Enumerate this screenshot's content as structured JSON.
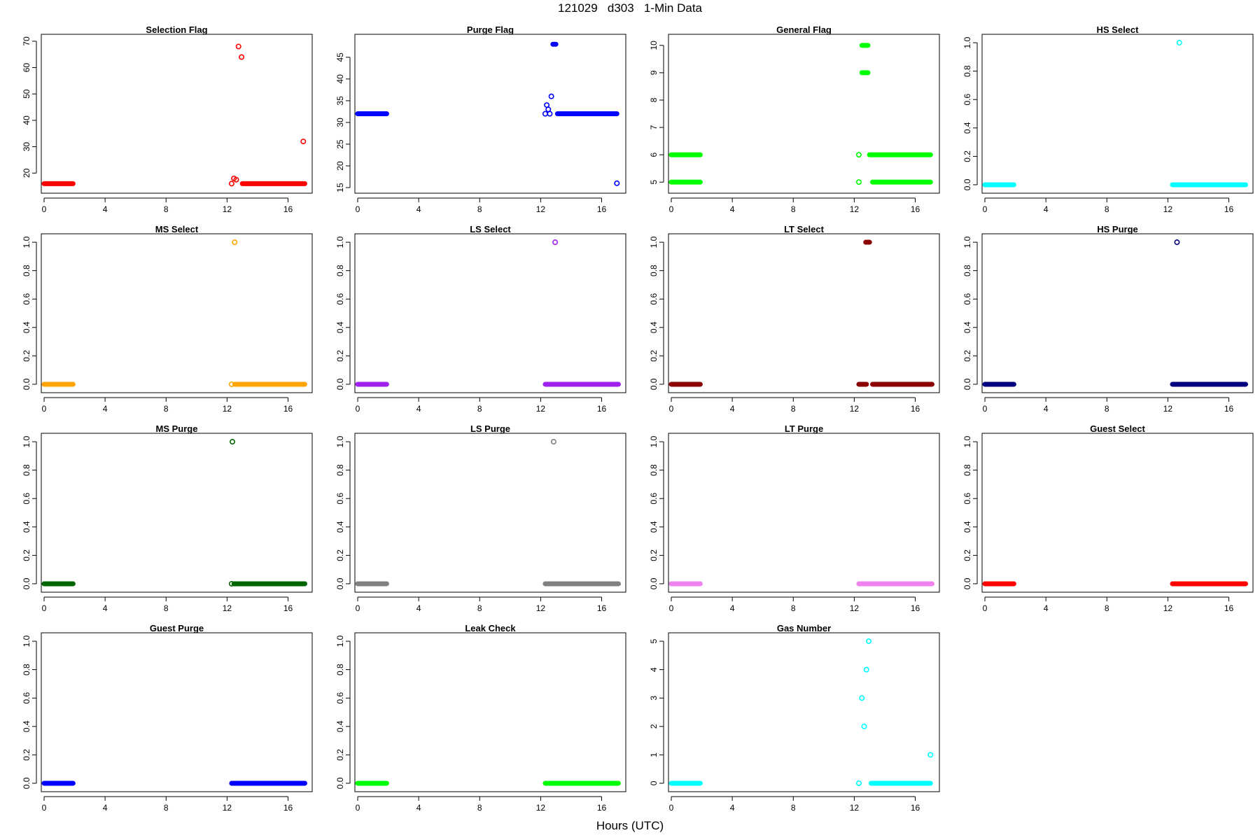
{
  "page": {
    "title": "121029   d303   1-Min Data",
    "xlabel": "Hours (UTC)"
  },
  "chart_data": [
    {
      "type": "scatter",
      "title": "Selection Flag",
      "color": "#ff0000",
      "xlim": [
        0,
        17.4
      ],
      "ylim": [
        14.5,
        70.5
      ],
      "xticks": [
        "0",
        "4",
        "8",
        "12",
        "16"
      ],
      "yticks": [
        "20",
        "30",
        "40",
        "50",
        "60",
        "70"
      ],
      "segments": [
        {
          "x": [
            0.0,
            1.9
          ],
          "y": 16
        },
        {
          "x": [
            13.0,
            17.1
          ],
          "y": 16
        }
      ],
      "points": [
        [
          12.3,
          16
        ],
        [
          12.45,
          18
        ],
        [
          12.6,
          17.5
        ],
        [
          12.75,
          68
        ],
        [
          12.95,
          64
        ],
        [
          17.0,
          32
        ]
      ]
    },
    {
      "type": "scatter",
      "title": "Purge Flag",
      "color": "#0000ff",
      "xlim": [
        0,
        17.4
      ],
      "ylim": [
        15,
        49
      ],
      "xticks": [
        "0",
        "4",
        "8",
        "12",
        "16"
      ],
      "yticks": [
        "15",
        "20",
        "25",
        "30",
        "35",
        "40",
        "45"
      ],
      "segments": [
        {
          "x": [
            0.0,
            1.9
          ],
          "y": 32
        },
        {
          "x": [
            13.1,
            17.0
          ],
          "y": 32
        },
        {
          "x": [
            12.8,
            13.0
          ],
          "y": 48
        }
      ],
      "points": [
        [
          12.3,
          32
        ],
        [
          12.4,
          34
        ],
        [
          12.5,
          33
        ],
        [
          12.6,
          32
        ],
        [
          12.7,
          36
        ],
        [
          17.0,
          16
        ]
      ]
    },
    {
      "type": "scatter",
      "title": "General Flag",
      "color": "#00ff00",
      "xlim": [
        0,
        17.4
      ],
      "ylim": [
        4.8,
        10.2
      ],
      "xticks": [
        "0",
        "4",
        "8",
        "12",
        "16"
      ],
      "yticks": [
        "5",
        "6",
        "7",
        "8",
        "9",
        "10"
      ],
      "segments": [
        {
          "x": [
            0.0,
            1.9
          ],
          "y": 5
        },
        {
          "x": [
            0.0,
            1.9
          ],
          "y": 6
        },
        {
          "x": [
            13.2,
            17.0
          ],
          "y": 5
        },
        {
          "x": [
            13.0,
            17.0
          ],
          "y": 6
        },
        {
          "x": [
            12.5,
            12.9
          ],
          "y": 9
        },
        {
          "x": [
            12.5,
            12.9
          ],
          "y": 10
        }
      ],
      "points": [
        [
          12.3,
          5
        ],
        [
          12.3,
          6
        ]
      ]
    },
    {
      "type": "scatter",
      "title": "HS Select",
      "color": "#00ffff",
      "xlim": [
        0,
        17.4
      ],
      "ylim": [
        -0.02,
        1.02
      ],
      "xticks": [
        "0",
        "4",
        "8",
        "12",
        "16"
      ],
      "yticks": [
        "0.0",
        "0.2",
        "0.4",
        "0.6",
        "0.8",
        "1.0"
      ],
      "segments": [
        {
          "x": [
            0.0,
            1.9
          ],
          "y": 0
        },
        {
          "x": [
            12.3,
            17.1
          ],
          "y": 0
        }
      ],
      "points": [
        [
          12.75,
          1
        ]
      ]
    },
    {
      "type": "scatter",
      "title": "MS Select",
      "color": "#ffa500",
      "xlim": [
        0,
        17.4
      ],
      "ylim": [
        -0.02,
        1.02
      ],
      "xticks": [
        "0",
        "4",
        "8",
        "12",
        "16"
      ],
      "yticks": [
        "0.0",
        "0.2",
        "0.4",
        "0.6",
        "0.8",
        "1.0"
      ],
      "segments": [
        {
          "x": [
            0.0,
            1.9
          ],
          "y": 0
        },
        {
          "x": [
            12.5,
            17.1
          ],
          "y": 0
        }
      ],
      "points": [
        [
          12.3,
          0
        ],
        [
          12.5,
          1
        ]
      ]
    },
    {
      "type": "scatter",
      "title": "LS Select",
      "color": "#a020f0",
      "xlim": [
        0,
        17.4
      ],
      "ylim": [
        -0.02,
        1.02
      ],
      "xticks": [
        "0",
        "4",
        "8",
        "12",
        "16"
      ],
      "yticks": [
        "0.0",
        "0.2",
        "0.4",
        "0.6",
        "0.8",
        "1.0"
      ],
      "segments": [
        {
          "x": [
            0.0,
            1.9
          ],
          "y": 0
        },
        {
          "x": [
            12.3,
            17.1
          ],
          "y": 0
        }
      ],
      "points": [
        [
          12.95,
          1
        ]
      ]
    },
    {
      "type": "scatter",
      "title": "LT Select",
      "color": "#8b0000",
      "xlim": [
        0,
        17.4
      ],
      "ylim": [
        -0.02,
        1.02
      ],
      "xticks": [
        "0",
        "4",
        "8",
        "12",
        "16"
      ],
      "yticks": [
        "0.0",
        "0.2",
        "0.4",
        "0.6",
        "0.8",
        "1.0"
      ],
      "segments": [
        {
          "x": [
            0.0,
            1.9
          ],
          "y": 0
        },
        {
          "x": [
            12.3,
            12.8
          ],
          "y": 0
        },
        {
          "x": [
            13.2,
            17.1
          ],
          "y": 0
        },
        {
          "x": [
            12.75,
            13.0
          ],
          "y": 1
        }
      ],
      "points": []
    },
    {
      "type": "scatter",
      "title": "HS Purge",
      "color": "#000080",
      "xlim": [
        0,
        17.4
      ],
      "ylim": [
        -0.02,
        1.02
      ],
      "xticks": [
        "0",
        "4",
        "8",
        "12",
        "16"
      ],
      "yticks": [
        "0.0",
        "0.2",
        "0.4",
        "0.6",
        "0.8",
        "1.0"
      ],
      "segments": [
        {
          "x": [
            0.0,
            1.9
          ],
          "y": 0
        },
        {
          "x": [
            12.3,
            17.1
          ],
          "y": 0
        }
      ],
      "points": [
        [
          12.6,
          1
        ]
      ]
    },
    {
      "type": "scatter",
      "title": "MS Purge",
      "color": "#006400",
      "xlim": [
        0,
        17.4
      ],
      "ylim": [
        -0.02,
        1.02
      ],
      "xticks": [
        "0",
        "4",
        "8",
        "12",
        "16"
      ],
      "yticks": [
        "0.0",
        "0.2",
        "0.4",
        "0.6",
        "0.8",
        "1.0"
      ],
      "segments": [
        {
          "x": [
            0.0,
            1.9
          ],
          "y": 0
        },
        {
          "x": [
            12.45,
            17.1
          ],
          "y": 0
        }
      ],
      "points": [
        [
          12.3,
          0
        ],
        [
          12.35,
          1
        ]
      ]
    },
    {
      "type": "scatter",
      "title": "LS Purge",
      "color": "#808080",
      "xlim": [
        0,
        17.4
      ],
      "ylim": [
        -0.02,
        1.02
      ],
      "xticks": [
        "0",
        "4",
        "8",
        "12",
        "16"
      ],
      "yticks": [
        "0.0",
        "0.2",
        "0.4",
        "0.6",
        "0.8",
        "1.0"
      ],
      "segments": [
        {
          "x": [
            0.0,
            1.9
          ],
          "y": 0
        },
        {
          "x": [
            12.3,
            17.1
          ],
          "y": 0
        }
      ],
      "points": [
        [
          12.85,
          1
        ]
      ]
    },
    {
      "type": "scatter",
      "title": "LT Purge",
      "color": "#ee82ee",
      "xlim": [
        0,
        17.4
      ],
      "ylim": [
        -0.02,
        1.02
      ],
      "xticks": [
        "0",
        "4",
        "8",
        "12",
        "16"
      ],
      "yticks": [
        "0.0",
        "0.2",
        "0.4",
        "0.6",
        "0.8",
        "1.0"
      ],
      "segments": [
        {
          "x": [
            0.0,
            1.9
          ],
          "y": 0
        },
        {
          "x": [
            12.3,
            17.1
          ],
          "y": 0
        }
      ],
      "points": []
    },
    {
      "type": "scatter",
      "title": "Guest Select",
      "color": "#ff0000",
      "xlim": [
        0,
        17.4
      ],
      "ylim": [
        -0.02,
        1.02
      ],
      "xticks": [
        "0",
        "4",
        "8",
        "12",
        "16"
      ],
      "yticks": [
        "0.0",
        "0.2",
        "0.4",
        "0.6",
        "0.8",
        "1.0"
      ],
      "segments": [
        {
          "x": [
            0.0,
            1.9
          ],
          "y": 0
        },
        {
          "x": [
            12.3,
            17.1
          ],
          "y": 0
        }
      ],
      "points": []
    },
    {
      "type": "scatter",
      "title": "Guest Purge",
      "color": "#0000ff",
      "xlim": [
        0,
        17.4
      ],
      "ylim": [
        -0.02,
        1.02
      ],
      "xticks": [
        "0",
        "4",
        "8",
        "12",
        "16"
      ],
      "yticks": [
        "0.0",
        "0.2",
        "0.4",
        "0.6",
        "0.8",
        "1.0"
      ],
      "segments": [
        {
          "x": [
            0.0,
            1.9
          ],
          "y": 0
        },
        {
          "x": [
            12.3,
            17.1
          ],
          "y": 0
        }
      ],
      "points": []
    },
    {
      "type": "scatter",
      "title": "Leak Check",
      "color": "#00ff00",
      "xlim": [
        0,
        17.4
      ],
      "ylim": [
        -0.02,
        1.02
      ],
      "xticks": [
        "0",
        "4",
        "8",
        "12",
        "16"
      ],
      "yticks": [
        "0.0",
        "0.2",
        "0.4",
        "0.6",
        "0.8",
        "1.0"
      ],
      "segments": [
        {
          "x": [
            0.0,
            1.9
          ],
          "y": 0
        },
        {
          "x": [
            12.3,
            17.1
          ],
          "y": 0
        }
      ],
      "points": []
    },
    {
      "type": "scatter",
      "title": "Gas Number",
      "color": "#00ffff",
      "xlim": [
        0,
        17.4
      ],
      "ylim": [
        -0.1,
        5.1
      ],
      "xticks": [
        "0",
        "4",
        "8",
        "12",
        "16"
      ],
      "yticks": [
        "0",
        "1",
        "2",
        "3",
        "4",
        "5"
      ],
      "segments": [
        {
          "x": [
            0.0,
            1.9
          ],
          "y": 0
        },
        {
          "x": [
            13.1,
            17.0
          ],
          "y": 0
        }
      ],
      "points": [
        [
          12.3,
          0
        ],
        [
          12.5,
          3
        ],
        [
          12.65,
          2
        ],
        [
          12.8,
          4
        ],
        [
          12.95,
          5
        ],
        [
          17.0,
          1
        ]
      ]
    }
  ]
}
